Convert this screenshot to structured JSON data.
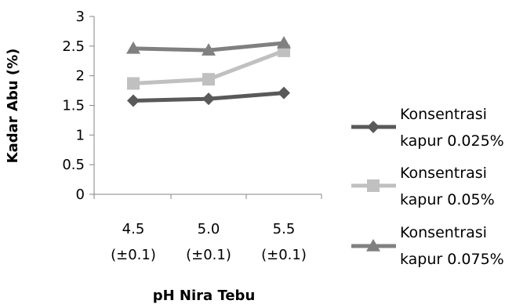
{
  "chart_data": {
    "type": "line",
    "xlabel": "pH Nira Tebu",
    "ylabel": "Kadar Abu (%)",
    "ylim": [
      0,
      3
    ],
    "yticks": [
      "0",
      "0.5",
      "1",
      "1.5",
      "2",
      "2.5",
      "3"
    ],
    "categories": [
      {
        "line1": "4.5",
        "line2": "(±0.1)"
      },
      {
        "line1": "5.0",
        "line2": "(±0.1)"
      },
      {
        "line1": "5.5",
        "line2": "(±0.1)"
      }
    ],
    "series": [
      {
        "name": "Konsentrasi kapur 0.025%",
        "name_line1": "Konsentrasi",
        "name_line2": "kapur 0.025%",
        "color": "#595959",
        "marker": "diamond",
        "values": [
          1.58,
          1.61,
          1.71
        ]
      },
      {
        "name": "Konsentrasi kapur 0.05%",
        "name_line1": "Konsentrasi",
        "name_line2": "kapur 0.05%",
        "color": "#c0c0c0",
        "marker": "square",
        "values": [
          1.87,
          1.94,
          2.42
        ]
      },
      {
        "name": "Konsentrasi kapur 0.075%",
        "name_line1": "Konsentrasi",
        "name_line2": "kapur 0.075%",
        "color": "#808080",
        "marker": "triangle",
        "values": [
          2.46,
          2.43,
          2.55
        ]
      }
    ],
    "legend_position": "right",
    "grid": false
  }
}
